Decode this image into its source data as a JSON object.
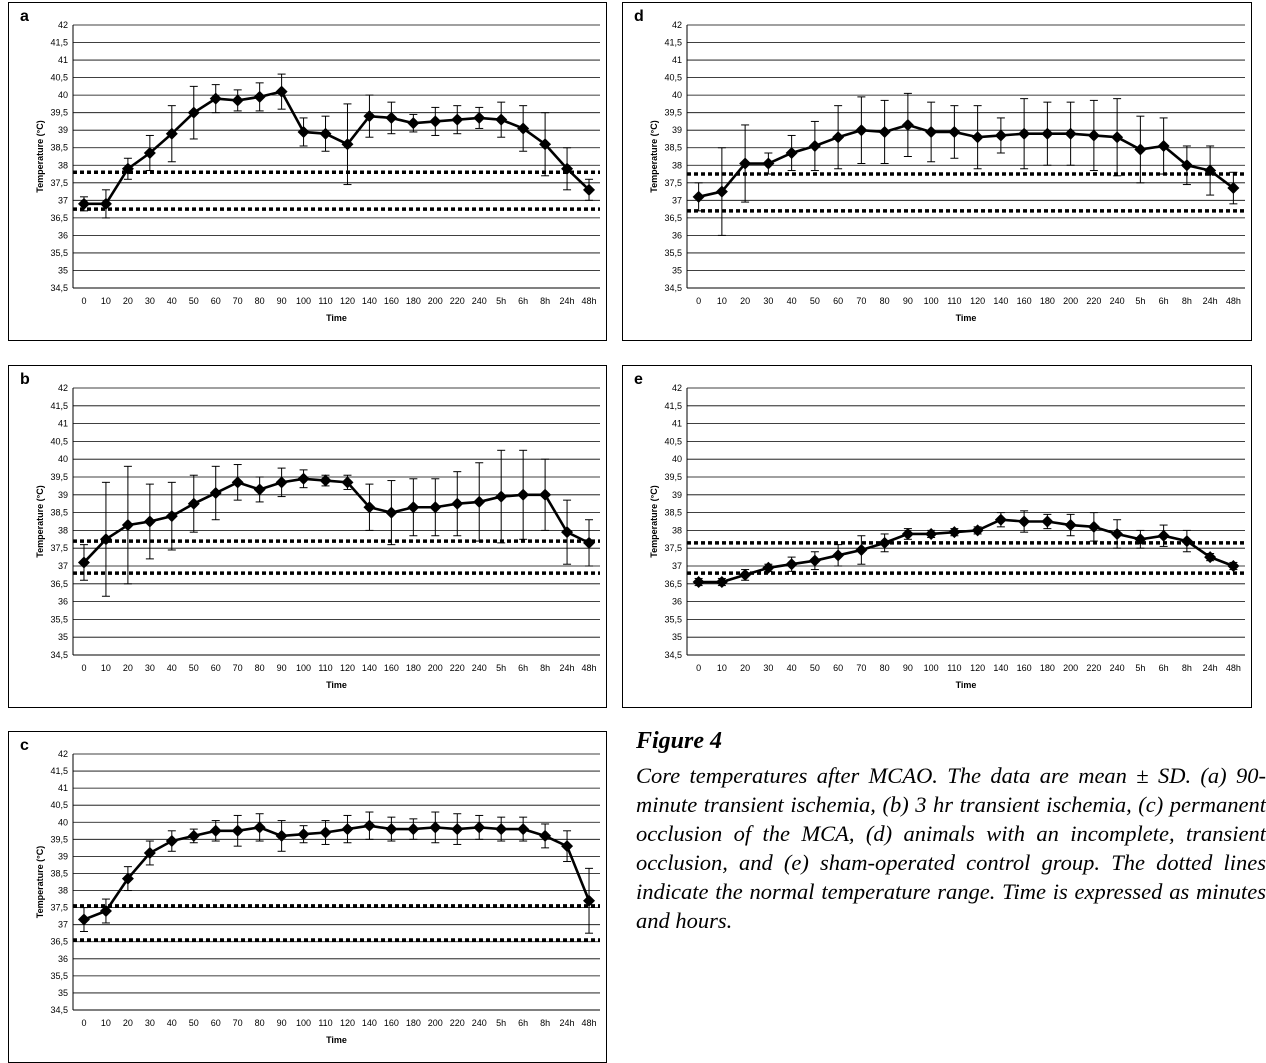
{
  "figure": {
    "title": "Figure 4",
    "caption": "Core temperatures after MCAO. The data are mean ± SD. (a) 90-minute transient ischemia, (b) 3 hr transient ischemia, (c) permanent occlusion of the MCA, (d) animals with an incomplete, transient occlusion, and (e) sham-operated control group. The dotted lines indicate the normal temperature range. Time is expressed as minutes and hours."
  },
  "chart_data": [
    {
      "panel": "a",
      "type": "line",
      "xlabel": "Time",
      "ylabel": "Temperature (°C)",
      "ylim": [
        34.5,
        42
      ],
      "y_ticks": [
        "34,5",
        "35",
        "35,5",
        "36",
        "36,5",
        "37",
        "37,5",
        "38",
        "38,5",
        "39",
        "39,5",
        "40",
        "40,5",
        "41",
        "41,5",
        "42"
      ],
      "categories": [
        "0",
        "10",
        "20",
        "30",
        "40",
        "50",
        "60",
        "70",
        "80",
        "90",
        "100",
        "110",
        "120",
        "140",
        "160",
        "180",
        "200",
        "220",
        "240",
        "5h",
        "6h",
        "8h",
        "24h",
        "48h"
      ],
      "values": [
        36.9,
        36.9,
        37.9,
        38.35,
        38.9,
        39.5,
        39.9,
        39.85,
        39.95,
        40.1,
        38.95,
        38.9,
        38.6,
        39.4,
        39.35,
        39.2,
        39.25,
        39.3,
        39.35,
        39.3,
        39.05,
        38.6,
        37.9,
        37.3
      ],
      "sd": [
        0.2,
        0.4,
        0.3,
        0.5,
        0.8,
        0.75,
        0.4,
        0.3,
        0.4,
        0.5,
        0.4,
        0.5,
        1.15,
        0.6,
        0.45,
        0.25,
        0.4,
        0.4,
        0.3,
        0.5,
        0.65,
        0.9,
        0.6,
        0.3
      ],
      "normal_range": [
        36.75,
        37.8
      ],
      "grid": true
    },
    {
      "panel": "d",
      "type": "line",
      "xlabel": "Time",
      "ylabel": "Temperature (°C)",
      "ylim": [
        34.5,
        42
      ],
      "y_ticks": [
        "34,5",
        "35",
        "35,5",
        "36",
        "36,5",
        "37",
        "37,5",
        "38",
        "38,5",
        "39",
        "39,5",
        "40",
        "40,5",
        "41",
        "41,5",
        "42"
      ],
      "categories": [
        "0",
        "10",
        "20",
        "30",
        "40",
        "50",
        "60",
        "70",
        "80",
        "90",
        "100",
        "110",
        "120",
        "140",
        "160",
        "180",
        "200",
        "220",
        "240",
        "5h",
        "6h",
        "8h",
        "24h",
        "48h"
      ],
      "values": [
        37.1,
        37.25,
        38.05,
        38.05,
        38.35,
        38.55,
        38.8,
        39.0,
        38.95,
        39.15,
        38.95,
        38.95,
        38.8,
        38.85,
        38.9,
        38.9,
        38.9,
        38.85,
        38.8,
        38.45,
        38.55,
        38.0,
        37.85,
        37.35
      ],
      "sd": [
        0.4,
        1.25,
        1.1,
        0.3,
        0.5,
        0.7,
        0.9,
        0.95,
        0.9,
        0.9,
        0.85,
        0.75,
        0.9,
        0.5,
        1.0,
        0.9,
        0.9,
        1.0,
        1.1,
        0.95,
        0.8,
        0.55,
        0.7,
        0.45
      ],
      "normal_range": [
        36.7,
        37.75
      ],
      "grid": true
    },
    {
      "panel": "b",
      "type": "line",
      "xlabel": "Time",
      "ylabel": "Temperature (°C)",
      "ylim": [
        34.5,
        42
      ],
      "y_ticks": [
        "34,5",
        "35",
        "35,5",
        "36",
        "36,5",
        "37",
        "37,5",
        "38",
        "38,5",
        "39",
        "39,5",
        "40",
        "40,5",
        "41",
        "41,5",
        "42"
      ],
      "categories": [
        "0",
        "10",
        "20",
        "30",
        "40",
        "50",
        "60",
        "70",
        "80",
        "90",
        "100",
        "110",
        "120",
        "140",
        "160",
        "180",
        "200",
        "220",
        "240",
        "5h",
        "6h",
        "8h",
        "24h",
        "48h"
      ],
      "values": [
        37.1,
        37.75,
        38.15,
        38.25,
        38.4,
        38.75,
        39.05,
        39.35,
        39.15,
        39.35,
        39.45,
        39.4,
        39.35,
        38.65,
        38.5,
        38.65,
        38.65,
        38.75,
        38.8,
        38.95,
        39.0,
        39.0,
        37.95,
        37.65
      ],
      "sd": [
        0.5,
        1.6,
        1.65,
        1.05,
        0.95,
        0.8,
        0.75,
        0.5,
        0.35,
        0.4,
        0.25,
        0.15,
        0.2,
        0.65,
        0.9,
        0.8,
        0.8,
        0.9,
        1.1,
        1.3,
        1.25,
        1.0,
        0.9,
        0.65
      ],
      "normal_range": [
        36.8,
        37.7
      ],
      "grid": true
    },
    {
      "panel": "e",
      "type": "line",
      "xlabel": "Time",
      "ylabel": "Temperature (°C)",
      "ylim": [
        34.5,
        42
      ],
      "y_ticks": [
        "34,5",
        "35",
        "35,5",
        "36",
        "36,5",
        "37",
        "37,5",
        "38",
        "38,5",
        "39",
        "39,5",
        "40",
        "40,5",
        "41",
        "41,5",
        "42"
      ],
      "categories": [
        "0",
        "10",
        "20",
        "30",
        "40",
        "50",
        "60",
        "70",
        "80",
        "90",
        "100",
        "110",
        "120",
        "140",
        "160",
        "180",
        "200",
        "220",
        "240",
        "5h",
        "6h",
        "8h",
        "24h",
        "48h"
      ],
      "values": [
        36.55,
        36.55,
        36.75,
        36.95,
        37.05,
        37.15,
        37.3,
        37.45,
        37.65,
        37.9,
        37.9,
        37.95,
        38.0,
        38.3,
        38.25,
        38.25,
        38.15,
        38.1,
        37.9,
        37.75,
        37.85,
        37.7,
        37.25,
        37.0
      ],
      "sd": [
        0.1,
        0.1,
        0.15,
        0.1,
        0.2,
        0.25,
        0.3,
        0.4,
        0.25,
        0.15,
        0.1,
        0.1,
        0.1,
        0.2,
        0.3,
        0.2,
        0.3,
        0.4,
        0.4,
        0.25,
        0.3,
        0.3,
        0.1,
        0.1
      ],
      "normal_range": [
        36.8,
        37.65
      ],
      "grid": true
    },
    {
      "panel": "c",
      "type": "line",
      "xlabel": "Time",
      "ylabel": "Temperature (°C)",
      "ylim": [
        34.5,
        42
      ],
      "y_ticks": [
        "34,5",
        "35",
        "35,5",
        "36",
        "36,5",
        "37",
        "37,5",
        "38",
        "38,5",
        "39",
        "39,5",
        "40",
        "40,5",
        "41",
        "41,5",
        "42"
      ],
      "categories": [
        "0",
        "10",
        "20",
        "30",
        "40",
        "50",
        "60",
        "70",
        "80",
        "90",
        "100",
        "110",
        "120",
        "140",
        "160",
        "180",
        "200",
        "220",
        "240",
        "5h",
        "6h",
        "8h",
        "24h",
        "48h"
      ],
      "values": [
        37.15,
        37.4,
        38.35,
        39.1,
        39.45,
        39.6,
        39.75,
        39.75,
        39.85,
        39.6,
        39.65,
        39.7,
        39.8,
        39.9,
        39.8,
        39.8,
        39.85,
        39.8,
        39.85,
        39.8,
        39.8,
        39.6,
        39.3,
        37.7
      ],
      "sd": [
        0.35,
        0.35,
        0.35,
        0.35,
        0.3,
        0.2,
        0.3,
        0.45,
        0.4,
        0.45,
        0.25,
        0.35,
        0.4,
        0.4,
        0.35,
        0.3,
        0.45,
        0.45,
        0.35,
        0.35,
        0.35,
        0.35,
        0.45,
        0.95
      ],
      "normal_range": [
        36.55,
        37.55
      ],
      "grid": true
    }
  ]
}
